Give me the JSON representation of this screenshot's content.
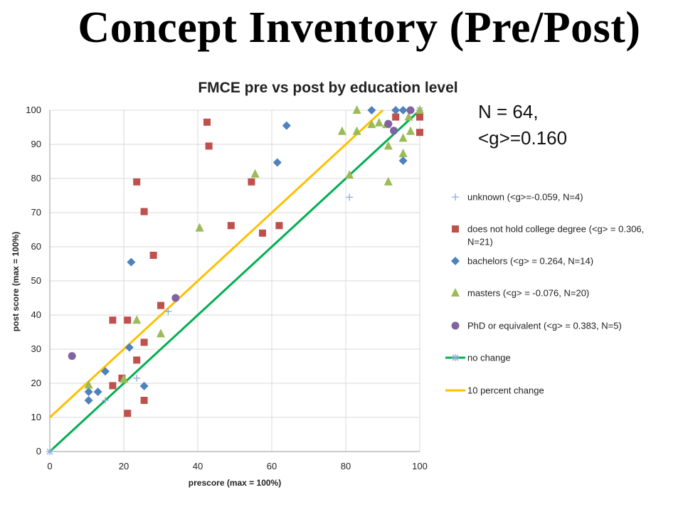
{
  "slide": {
    "title": "Concept Inventory (Pre/Post)"
  },
  "chart_data": {
    "type": "scatter",
    "title": "FMCE pre vs post by education level",
    "xlabel": "prescore (max = 100%)",
    "ylabel": "post score (max = 100%)",
    "xlim": [
      0,
      100
    ],
    "ylim": [
      0,
      100
    ],
    "xticks": [
      "0",
      "20",
      "40",
      "60",
      "80",
      "100"
    ],
    "yticks": [
      "0",
      "10",
      "20",
      "30",
      "40",
      "50",
      "60",
      "70",
      "80",
      "90",
      "100"
    ],
    "grid": true,
    "legend_position": "right",
    "annotation_lines": [
      "N = 64,",
      "<g>=0.160"
    ],
    "series": [
      {
        "name": "unknown (<g>=-0.059, N=4)",
        "marker": "plus",
        "color": "#8faadc",
        "points": [
          [
            15,
            15
          ],
          [
            23.5,
            21.5
          ],
          [
            32,
            41
          ],
          [
            81,
            74.5
          ]
        ]
      },
      {
        "name": "does not hold college degree (<g> = 0.306, N=21)",
        "marker": "square",
        "color": "#c0504d",
        "points": [
          [
            42.5,
            96.5
          ],
          [
            43,
            89.5
          ],
          [
            23.5,
            79
          ],
          [
            25.5,
            70.3
          ],
          [
            28,
            57.5
          ],
          [
            30,
            42.8
          ],
          [
            17,
            38.5
          ],
          [
            21,
            38.5
          ],
          [
            25.5,
            32
          ],
          [
            23.5,
            26.8
          ],
          [
            19.5,
            21.5
          ],
          [
            17,
            19.3
          ],
          [
            25.5,
            15
          ],
          [
            21,
            11.2
          ],
          [
            49,
            66.2
          ],
          [
            54.5,
            79
          ],
          [
            57.5,
            64
          ],
          [
            62,
            66.2
          ],
          [
            93.5,
            98
          ],
          [
            100,
            98
          ],
          [
            100,
            93.5
          ]
        ]
      },
      {
        "name": "bachelors (<g> = 0.264, N=14)",
        "marker": "diamond",
        "color": "#4f81bd",
        "points": [
          [
            22,
            55.5
          ],
          [
            21.5,
            30.5
          ],
          [
            15,
            23.5
          ],
          [
            10.5,
            17.5
          ],
          [
            13,
            17.5
          ],
          [
            10.5,
            15
          ],
          [
            25.5,
            19.2
          ],
          [
            64,
            95.5
          ],
          [
            61.5,
            84.7
          ],
          [
            87,
            100
          ],
          [
            93.5,
            100
          ],
          [
            95.5,
            100
          ],
          [
            95.5,
            85.2
          ],
          [
            91.5,
            96
          ]
        ]
      },
      {
        "name": "masters (<g> = -0.076, N=20)",
        "marker": "triangle",
        "color": "#9bbb59",
        "points": [
          [
            10.5,
            19.5
          ],
          [
            20,
            21.2
          ],
          [
            23.5,
            38.5
          ],
          [
            30,
            34.5
          ],
          [
            40.5,
            65.5
          ],
          [
            55.5,
            81.3
          ],
          [
            79,
            93.8
          ],
          [
            81,
            81
          ],
          [
            83,
            100
          ],
          [
            83,
            93.8
          ],
          [
            87,
            95.8
          ],
          [
            91.5,
            89.5
          ],
          [
            91.5,
            79
          ],
          [
            95.5,
            87.3
          ],
          [
            95.5,
            91.8
          ],
          [
            97.5,
            93.8
          ],
          [
            100,
            100
          ],
          [
            91,
            95.8
          ],
          [
            89,
            96.3
          ],
          [
            97,
            98
          ]
        ]
      },
      {
        "name": "PhD or equivalent (<g> = 0.383, N=5)",
        "marker": "circle",
        "color": "#8064a2",
        "points": [
          [
            6,
            28
          ],
          [
            34,
            45
          ],
          [
            91.5,
            96
          ],
          [
            93,
            94
          ],
          [
            97.5,
            100
          ]
        ]
      },
      {
        "name": "no change",
        "marker": "line",
        "color": "#00b050",
        "points": [
          [
            0,
            0
          ],
          [
            100,
            100
          ]
        ]
      },
      {
        "name": "10 percent change",
        "marker": "line",
        "color": "#ffc000",
        "points": [
          [
            0,
            10
          ],
          [
            90,
            100
          ]
        ]
      }
    ]
  }
}
